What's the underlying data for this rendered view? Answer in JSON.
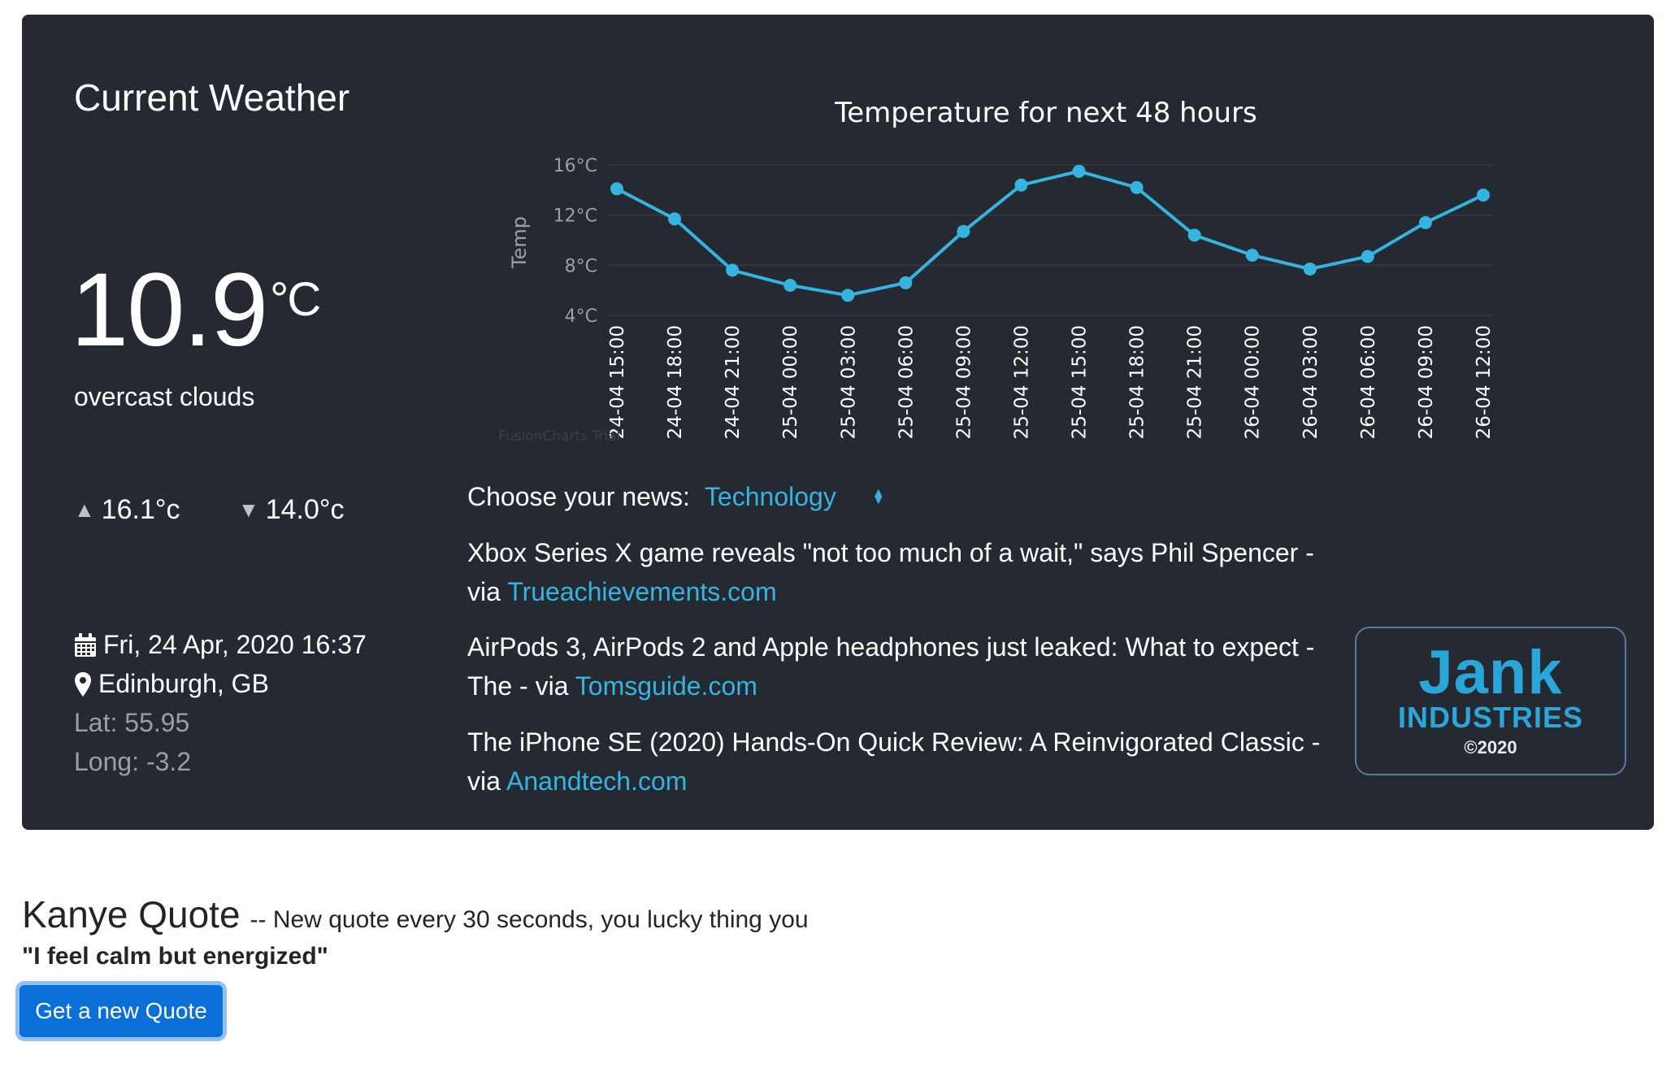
{
  "weather": {
    "title": "Current Weather",
    "temperature": "10.9",
    "temp_unit": "°C",
    "description": "overcast clouds",
    "max_temp": "16.1°c",
    "min_temp": "14.0°c",
    "datetime": "Fri, 24 Apr, 2020 16:37",
    "location": "Edinburgh, GB",
    "lat": "Lat: 55.95",
    "long": "Long: -3.2",
    "icons": {
      "max": "triangle-up-icon",
      "min": "triangle-down-icon",
      "date": "calendar-icon",
      "location": "map-pin-icon"
    }
  },
  "chart_data": {
    "type": "line",
    "title": "Temperature for next 48 hours",
    "ylabel": "Temp",
    "xlabel": "",
    "ylim": [
      4,
      16
    ],
    "y_ticks": [
      "4°C",
      "8°C",
      "12°C",
      "16°C"
    ],
    "y_tick_values": [
      4,
      8,
      12,
      16
    ],
    "categories": [
      "24-04 15:00",
      "24-04 18:00",
      "24-04 21:00",
      "25-04 00:00",
      "25-04 03:00",
      "25-04 06:00",
      "25-04 09:00",
      "25-04 12:00",
      "25-04 15:00",
      "25-04 18:00",
      "25-04 21:00",
      "26-04 00:00",
      "26-04 03:00",
      "26-04 06:00",
      "26-04 09:00",
      "26-04 12:00"
    ],
    "values": [
      14.1,
      11.7,
      7.6,
      6.4,
      5.6,
      6.6,
      10.7,
      14.4,
      15.5,
      14.2,
      10.4,
      8.8,
      7.7,
      8.7,
      11.4,
      13.6
    ],
    "color": "#35b4e0",
    "grid": true,
    "watermark": "FusionCharts Trial"
  },
  "news": {
    "label": "Choose your news:",
    "selected_category": "Technology",
    "via": "via",
    "items": [
      {
        "headline_line1": "Xbox Series X game reveals \"not too much of a wait,\" says Phil Spencer -",
        "prefix": "via",
        "source": "Trueachievements.com"
      },
      {
        "headline_line1": "AirPods 3, AirPods 2 and Apple headphones just leaked: What to expect -",
        "prefix": "The - via",
        "source": "Tomsguide.com"
      },
      {
        "headline_line1": "The iPhone SE (2020) Hands-On Quick Review: A Reinvigorated Classic -",
        "prefix": "via",
        "source": "Anandtech.com"
      }
    ]
  },
  "logo": {
    "line1": "Jank",
    "line2": "INDUSTRIES",
    "line3": "©2020"
  },
  "quote": {
    "title": "Kanye Quote",
    "subtitle": "-- New quote every 30 seconds, you lucky thing you",
    "text": "\"I feel calm but energized\"",
    "button_label": "Get a new Quote"
  }
}
